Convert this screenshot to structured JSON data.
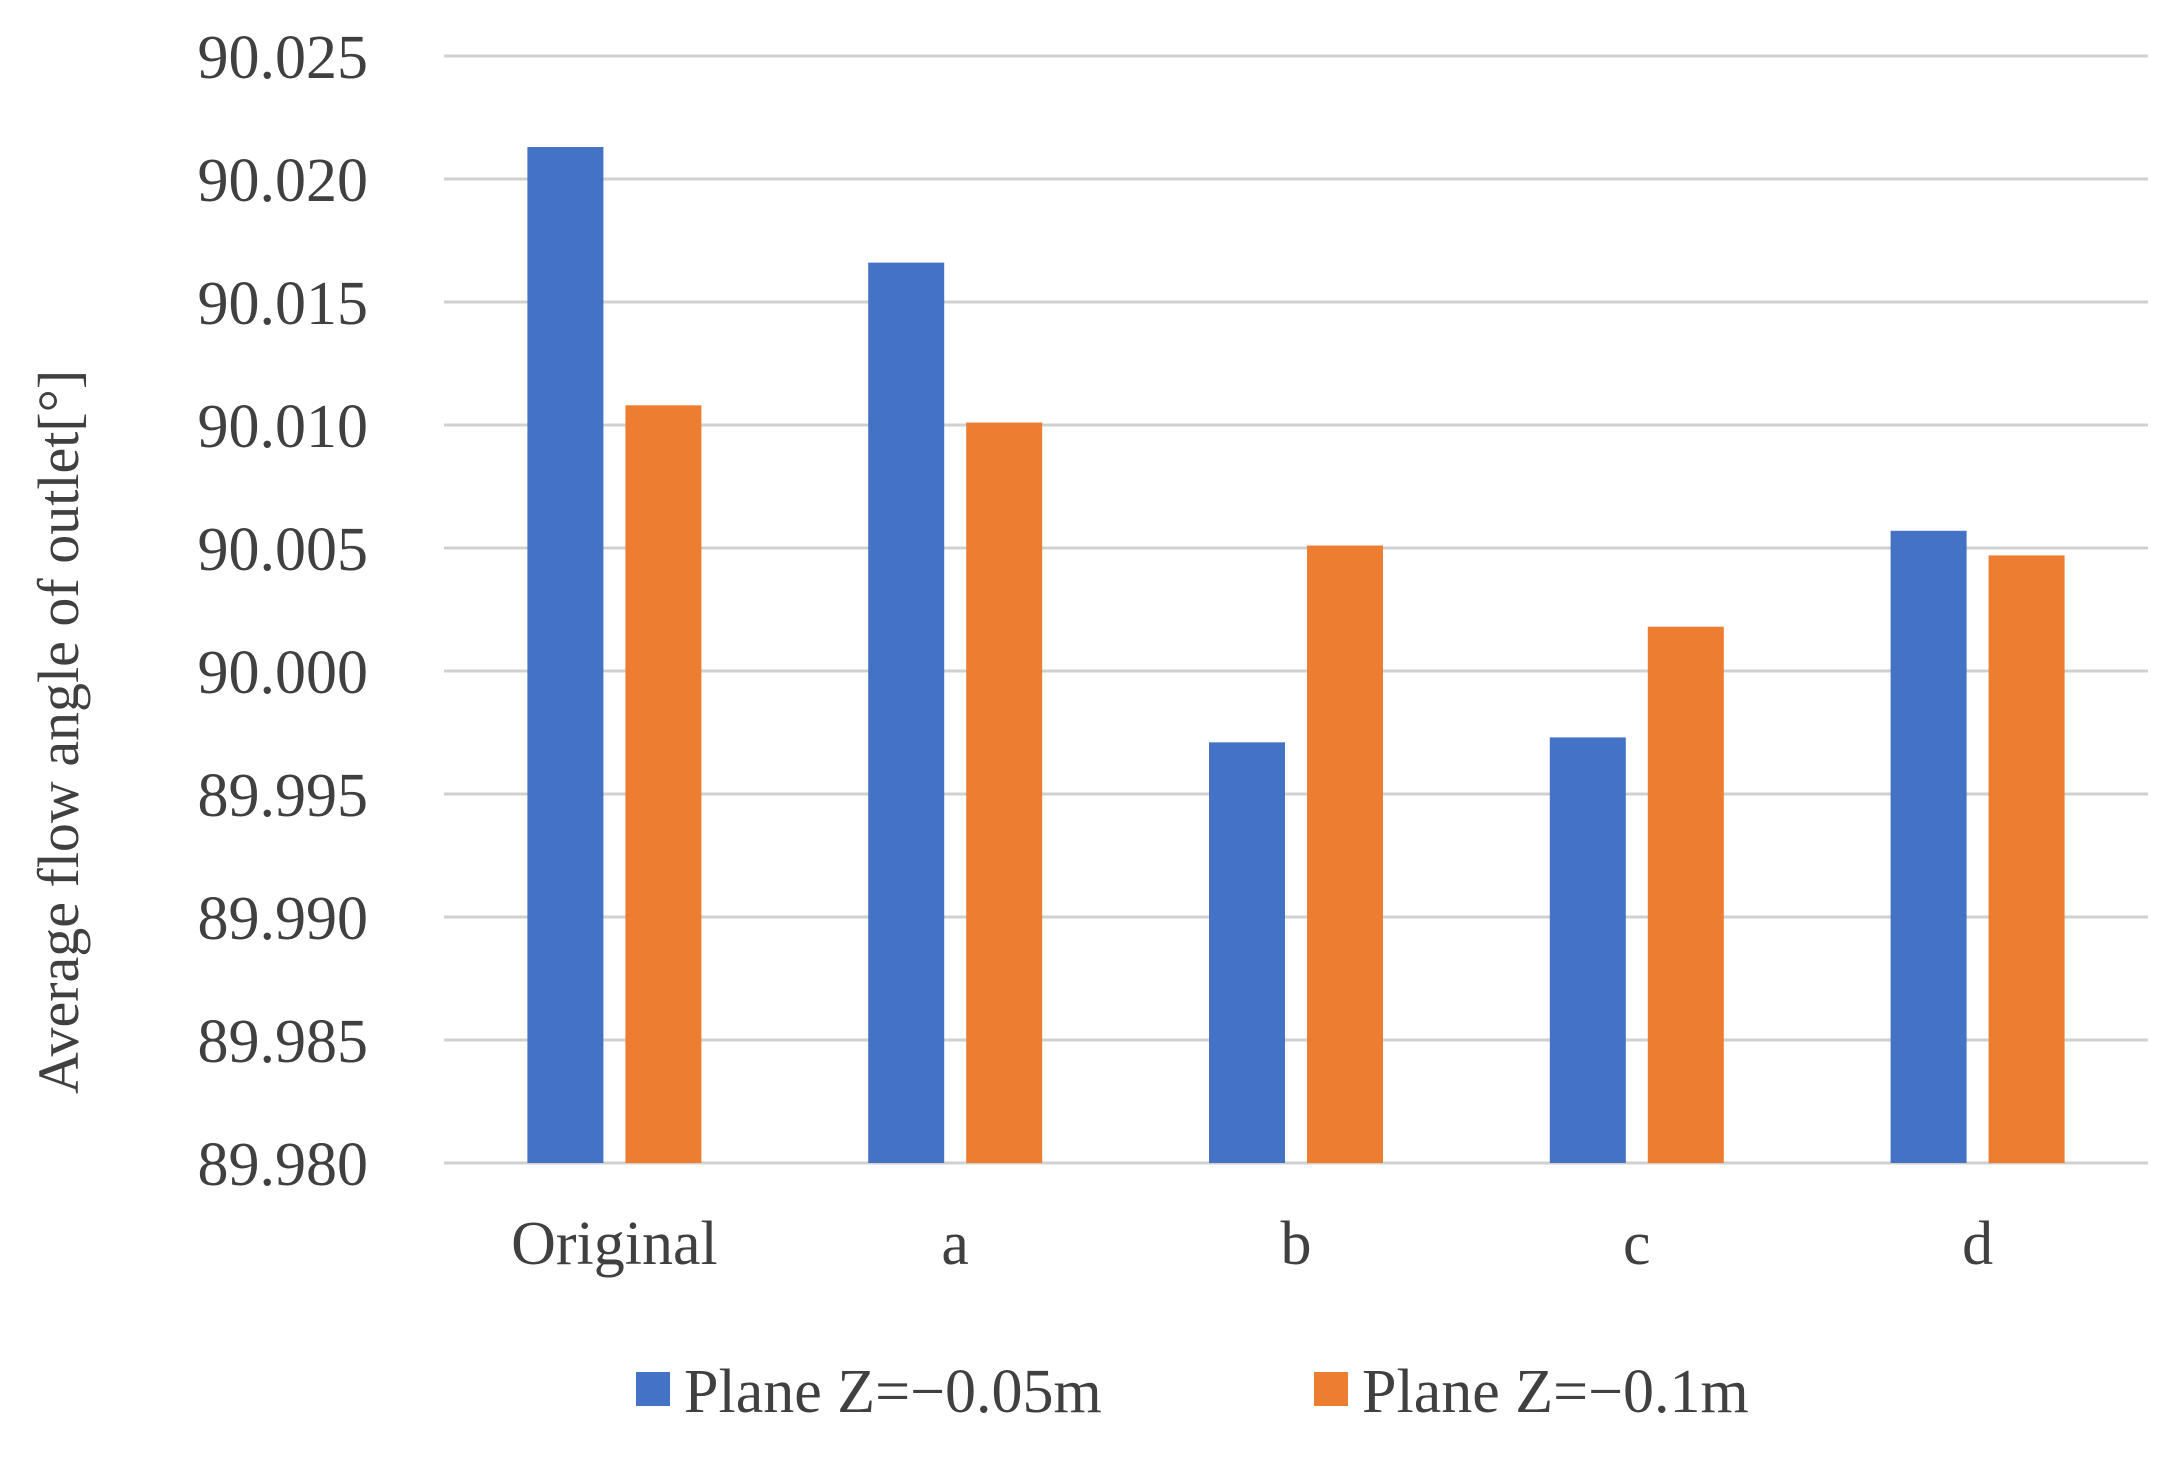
{
  "chart_data": {
    "type": "bar",
    "title": "",
    "xlabel": "",
    "ylabel": "Average flow angle of outlet[°]",
    "categories": [
      "Original",
      "a",
      "b",
      "c",
      "d"
    ],
    "series": [
      {
        "name": "Plane Z=−0.05m",
        "color": "#4472C4",
        "values": [
          90.0213,
          90.0166,
          89.9971,
          89.9973,
          90.0057
        ]
      },
      {
        "name": "Plane Z=−0.1m",
        "color": "#ED7D31",
        "values": [
          90.0108,
          90.0101,
          90.0051,
          90.0018,
          90.0047
        ]
      }
    ],
    "ylim": [
      89.98,
      90.025
    ],
    "yticks": [
      "89.980",
      "89.985",
      "89.990",
      "89.995",
      "90.000",
      "90.005",
      "90.010",
      "90.015",
      "90.020",
      "90.025"
    ],
    "grid": true,
    "legend_position": "bottom"
  }
}
